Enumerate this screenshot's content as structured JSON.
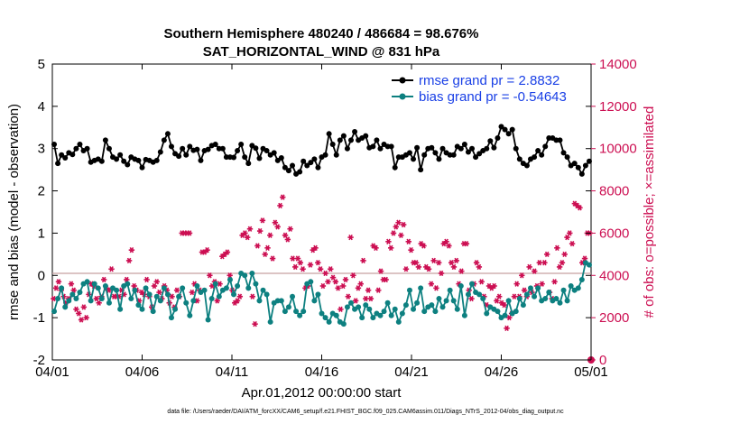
{
  "chart_data": {
    "type": "line",
    "title": "Southern Hemisphere 480240 / 486684 = 98.676%",
    "subtitle": "SAT_HORIZONTAL_WIND @ 831 hPa",
    "xlabel": "Apr.01,2012 00:00:00 start",
    "ylabel_left": "rmse and bias (model - observation)",
    "ylabel_right": "# of obs: o=possible; ×=assimilated",
    "ylim_left": [
      -2,
      5
    ],
    "ylim_right": [
      0,
      14000
    ],
    "yticks_left": [
      "-2",
      "-1",
      "0",
      "1",
      "2",
      "3",
      "4",
      "5"
    ],
    "yticks_right": [
      "0",
      "2000",
      "4000",
      "6000",
      "8000",
      "10000",
      "12000",
      "14000"
    ],
    "xlim_days": [
      0,
      30
    ],
    "xticks": [
      {
        "day": 0,
        "label": "04/01"
      },
      {
        "day": 5,
        "label": "04/06"
      },
      {
        "day": 10,
        "label": "04/11"
      },
      {
        "day": 15,
        "label": "04/16"
      },
      {
        "day": 20,
        "label": "04/21"
      },
      {
        "day": 25,
        "label": "04/26"
      },
      {
        "day": 30,
        "label": "05/01"
      }
    ],
    "colors": {
      "rmse": "#000000",
      "bias": "#0d8080",
      "obs": "#cc0f52",
      "zero_line": "#c8a0a0",
      "legend_text": "#1a40e6"
    },
    "series": [
      {
        "name": "rmse grand pr = 2.8832",
        "axis": "left",
        "values": [
          3.1,
          2.65,
          2.85,
          2.78,
          2.9,
          2.86,
          3.0,
          3.1,
          2.95,
          3.0,
          2.68,
          2.72,
          2.75,
          2.7,
          3.2,
          3.0,
          2.8,
          2.75,
          2.85,
          2.7,
          2.62,
          2.8,
          2.75,
          2.72,
          2.55,
          2.74,
          2.72,
          2.68,
          2.72,
          2.92,
          3.2,
          3.35,
          3.05,
          2.88,
          2.82,
          3.0,
          2.85,
          3.05,
          2.96,
          2.98,
          2.72,
          2.95,
          2.98,
          3.07,
          3.1,
          3.0,
          3.0,
          2.8,
          2.8,
          2.79,
          2.95,
          3.1,
          2.8,
          2.65,
          3.07,
          3.01,
          2.77,
          3.0,
          2.95,
          2.85,
          2.9,
          2.72,
          2.78,
          2.55,
          2.48,
          2.6,
          2.4,
          2.45,
          2.7,
          2.6,
          2.67,
          2.75,
          2.55,
          2.8,
          2.85,
          3.35,
          3.1,
          2.85,
          3.2,
          3.3,
          3.0,
          3.2,
          3.4,
          3.2,
          3.25,
          3.3,
          3.02,
          3.05,
          3.2,
          3.0,
          3.1,
          3.05,
          3.05,
          2.55,
          2.8,
          2.8,
          2.85,
          2.9,
          2.75,
          3.02,
          2.5,
          2.85,
          3.0,
          3.02,
          2.9,
          2.75,
          3.0,
          2.9,
          2.85,
          2.85,
          3.05,
          3.0,
          3.1,
          2.92,
          3.0,
          2.8,
          2.88,
          2.95,
          3.0,
          3.18,
          3.02,
          3.25,
          3.52,
          3.45,
          3.35,
          3.45,
          3.0,
          2.75,
          2.65,
          2.6,
          2.75,
          2.8,
          2.95,
          2.85,
          3.05,
          3.25,
          3.25,
          3.2,
          3.2,
          2.9,
          2.8,
          2.6,
          2.65,
          2.55,
          2.4,
          2.6,
          2.7
        ]
      },
      {
        "name": "bias grand pr = -0.54643",
        "axis": "left",
        "values": [
          -0.85,
          -0.55,
          -0.3,
          -0.75,
          -0.6,
          -0.45,
          -0.55,
          -0.4,
          -0.2,
          -0.15,
          -0.6,
          -0.2,
          -0.3,
          -0.55,
          -0.25,
          -0.65,
          -0.3,
          -0.35,
          -0.8,
          -0.25,
          -0.2,
          -0.55,
          -0.35,
          -0.7,
          -0.8,
          -0.3,
          -0.45,
          -0.85,
          -0.5,
          -0.6,
          -0.3,
          -0.45,
          -1.0,
          -0.8,
          -0.5,
          -0.3,
          -0.65,
          -0.95,
          -0.6,
          -0.25,
          -0.4,
          -0.35,
          -1.05,
          -0.55,
          -0.2,
          -0.5,
          -0.35,
          -0.3,
          -0.1,
          -0.45,
          -0.25,
          0.05,
          0.0,
          -0.3,
          0.05,
          -0.2,
          -0.6,
          -0.35,
          -0.45,
          -1.1,
          -0.65,
          -0.6,
          -0.6,
          -0.85,
          -0.75,
          -0.5,
          -0.85,
          -0.95,
          -0.85,
          -0.2,
          -0.15,
          -0.6,
          -0.45,
          -0.9,
          -1.0,
          -1.1,
          -0.9,
          -0.95,
          -1.1,
          -1.15,
          -0.75,
          -0.65,
          -0.8,
          -0.75,
          -1.0,
          -0.7,
          -0.8,
          -1.0,
          -0.9,
          -0.95,
          -0.85,
          -0.65,
          -0.95,
          -0.8,
          -1.1,
          -0.9,
          -0.7,
          -0.35,
          -0.8,
          -0.65,
          -0.3,
          -0.85,
          -0.75,
          -0.7,
          -0.85,
          -0.55,
          -0.75,
          -0.6,
          -0.35,
          -0.6,
          -0.8,
          -0.25,
          -0.95,
          -0.45,
          -0.2,
          -0.4,
          -0.45,
          -0.55,
          -0.9,
          -0.75,
          -0.8,
          -0.85,
          -1.0,
          -0.95,
          -0.6,
          -0.9,
          -0.85,
          -0.55,
          -0.7,
          -0.45,
          -0.3,
          -0.5,
          -0.3,
          -0.6,
          -0.55,
          -0.4,
          -0.6,
          -0.55,
          -0.65,
          -0.35,
          -0.6,
          -0.25,
          -0.35,
          -0.3,
          -0.1,
          0.3,
          0.25
        ]
      },
      {
        "name": "obs possible/assimilated",
        "axis": "right",
        "values": [
          2900,
          3400,
          3700,
          3300,
          3000,
          2700,
          2900,
          3600,
          3300,
          2400,
          2200,
          1900,
          2500,
          2000,
          3100,
          3600,
          3500,
          2900,
          2700,
          3000,
          3800,
          3400,
          3300,
          4300,
          3000,
          3000,
          3000,
          3300,
          3100,
          3800,
          4700,
          5200,
          3500,
          3300,
          2800,
          3200,
          3100,
          3800,
          3000,
          2500,
          3500,
          3700,
          3200,
          2900,
          3500,
          3300,
          2700,
          3000,
          2500,
          3300,
          3000,
          6000,
          6000,
          6000,
          6000,
          3200,
          3600,
          2800,
          3300,
          5100,
          5100,
          5200,
          4000,
          3500,
          3700,
          2800,
          3600,
          4900,
          5000,
          5100,
          4000,
          3300,
          2700,
          2800,
          3000,
          5900,
          6000,
          5800,
          6200,
          3000,
          1700,
          5400,
          6100,
          6600,
          5000,
          5300,
          5900,
          4800,
          6500,
          6300,
          7300,
          7700,
          5900,
          5700,
          6200,
          4800,
          4400,
          4800,
          4600,
          4300,
          3400,
          3500,
          4500,
          5200,
          5300,
          4600,
          4300,
          3500,
          4100,
          3700,
          4300,
          3900,
          3700,
          3400,
          2400,
          3500,
          3800,
          3000,
          5800,
          4000,
          2800,
          3400,
          3600,
          4700,
          2900,
          3300,
          2900,
          5400,
          5300,
          3300,
          4200,
          3800,
          3800,
          5600,
          5300,
          6000,
          6300,
          6500,
          5900,
          6400,
          4300,
          5600,
          5200,
          4600,
          4600,
          4400,
          5500,
          5400,
          4400,
          4300,
          3600,
          4700,
          3400,
          4600,
          4100,
          5500,
          5600,
          5400,
          4600,
          4400,
          4700,
          3600,
          4200,
          5500,
          5500,
          3300,
          2900,
          3600,
          4600,
          4400,
          3700,
          3000,
          2600,
          3500,
          3400,
          3500,
          2800,
          3000,
          2700,
          2600,
          1500,
          2000,
          2200,
          3000,
          3600,
          3000,
          4000,
          3300,
          3000,
          4400,
          3200,
          4200,
          3500,
          4600,
          3600,
          4600,
          5000,
          3200,
          2900,
          3700,
          5300,
          4400,
          4600,
          5000,
          5800,
          6000,
          5500,
          7400,
          7300,
          7200,
          4600,
          4800,
          6000,
          6000
        ]
      }
    ],
    "legend": [
      "rmse grand pr = 2.8832",
      "bias grand pr = -0.54643"
    ],
    "legend_position": "top-right",
    "extra_markers": [
      {
        "series": "obs",
        "day": 30,
        "value": 0
      }
    ]
  },
  "footer": {
    "data_file": "data file: /Users/raeder/DAI/ATM_forcXX/CAM6_setup/f.e21.FHIST_BGC.f09_025.CAM6assim.011/Diags_NTrS_2012-04/obs_diag_output.nc"
  }
}
